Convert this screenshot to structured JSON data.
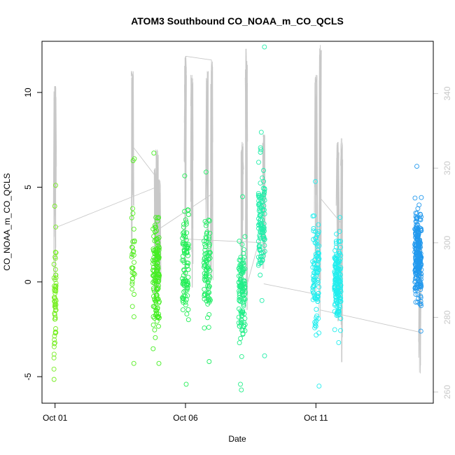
{
  "chart_data": {
    "type": "scatter",
    "title": "ATOM3 Southbound CO_NOAA_m_CO_QCLS",
    "xlabel": "Date",
    "ylabel": "CO_NOAA_m_CO_QCLS",
    "x_axis": {
      "type": "date",
      "range": [
        "2016-09-30T12:00",
        "2016-10-15T12:00"
      ],
      "ticks": [
        {
          "value": "2016-10-01",
          "label": "Oct 01"
        },
        {
          "value": "2016-10-06",
          "label": "Oct 06"
        },
        {
          "value": "2016-10-11",
          "label": "Oct 11"
        }
      ]
    },
    "y_axis": {
      "range": [
        -6.4,
        12.7
      ],
      "ticks": [
        -5,
        0,
        5,
        10
      ]
    },
    "y2_axis": {
      "range": [
        257,
        354
      ],
      "ticks": [
        260,
        280,
        300,
        320,
        340
      ],
      "color": "#c8c8c8"
    },
    "grid": false,
    "legend": "none",
    "series": [
      {
        "kind": "points",
        "axis": "left",
        "color": "#77ee22",
        "date": "2016-10-01T00:00",
        "spread_hours": 2,
        "mean": -1.0,
        "sd": 2.4,
        "n": 55,
        "outliers": [
          5.1,
          4.0,
          2.9,
          -4.6
        ]
      },
      {
        "kind": "points",
        "axis": "left",
        "color": "#55ee22",
        "date": "2016-10-04T00:00",
        "spread_hours": 3,
        "mean": 0.8,
        "sd": 2.6,
        "n": 30,
        "outliers": [
          6.5,
          6.4,
          -4.3
        ]
      },
      {
        "kind": "points",
        "axis": "left",
        "color": "#44ee22",
        "date": "2016-10-04T21:00",
        "spread_hours": 6,
        "mean": 0.4,
        "sd": 2.1,
        "n": 150,
        "outliers": [
          6.8,
          -4.3
        ]
      },
      {
        "kind": "points",
        "axis": "left",
        "color": "#22ee55",
        "date": "2016-10-06T00:00",
        "spread_hours": 6,
        "mean": 0.9,
        "sd": 2.2,
        "n": 90,
        "outliers": [
          5.6,
          -5.4
        ]
      },
      {
        "kind": "points",
        "axis": "left",
        "color": "#22ee66",
        "date": "2016-10-06T20:00",
        "spread_hours": 6,
        "mean": 0.6,
        "sd": 2.2,
        "n": 90,
        "outliers": [
          5.8,
          -4.2
        ]
      },
      {
        "kind": "points",
        "axis": "left",
        "color": "#22ee88",
        "date": "2016-10-08T04:00",
        "spread_hours": 6,
        "mean": -0.6,
        "sd": 1.9,
        "n": 120,
        "outliers": [
          4.5,
          -5.4,
          -5.7
        ]
      },
      {
        "kind": "points",
        "axis": "left",
        "color": "#22eeaa",
        "date": "2016-10-08T22:00",
        "spread_hours": 6,
        "mean": 3.2,
        "sd": 2.3,
        "n": 110,
        "outliers": [
          12.4,
          7.9,
          -3.9
        ]
      },
      {
        "kind": "points",
        "axis": "left",
        "color": "#22eeee",
        "date": "2016-10-11T00:00",
        "spread_hours": 6,
        "mean": 0.5,
        "sd": 2.2,
        "n": 100,
        "outliers": [
          5.3,
          -5.5
        ]
      },
      {
        "kind": "points",
        "axis": "left",
        "color": "#22eeee",
        "date": "2016-10-11T20:00",
        "spread_hours": 6,
        "mean": 0.2,
        "sd": 1.5,
        "n": 160,
        "outliers": [
          3.4,
          -3.2
        ]
      },
      {
        "kind": "points",
        "axis": "left",
        "color": "#2299ee",
        "date": "2016-10-14T22:00",
        "spread_hours": 6,
        "mean": 1.4,
        "sd": 1.8,
        "n": 230,
        "outliers": [
          6.1,
          -2.6
        ]
      }
    ],
    "profile_line": {
      "axis": "right",
      "color": "#c8c8c8",
      "spikes": [
        {
          "date": "2016-10-01T00:00",
          "top": 342,
          "bottom": 290
        },
        {
          "date": "2016-10-03T23:00",
          "top": 346,
          "bottom": 296
        },
        {
          "date": "2016-10-04T20:00",
          "top": 320,
          "bottom": 283
        },
        {
          "date": "2016-10-04T22:00",
          "top": 325,
          "bottom": 286
        },
        {
          "date": "2016-10-05T00:00",
          "top": 317,
          "bottom": 288
        },
        {
          "date": "2016-10-06T00:00",
          "top": 350,
          "bottom": 286
        },
        {
          "date": "2016-10-06T06:00",
          "top": 345,
          "bottom": 288
        },
        {
          "date": "2016-10-06T20:00",
          "top": 346,
          "bottom": 284
        },
        {
          "date": "2016-10-07T00:00",
          "top": 349,
          "bottom": 290
        },
        {
          "date": "2016-10-08T04:00",
          "top": 327,
          "bottom": 285
        },
        {
          "date": "2016-10-08T08:00",
          "top": 352,
          "bottom": 282
        },
        {
          "date": "2016-10-09T00:00",
          "top": 329,
          "bottom": 293
        },
        {
          "date": "2016-10-11T00:00",
          "top": 345,
          "bottom": 287
        },
        {
          "date": "2016-10-11T04:00",
          "top": 353,
          "bottom": 280
        },
        {
          "date": "2016-10-11T20:00",
          "top": 327,
          "bottom": 279
        },
        {
          "date": "2016-10-12T00:00",
          "top": 328,
          "bottom": 268
        },
        {
          "date": "2016-10-15T00:00",
          "top": 303,
          "bottom": 265
        }
      ],
      "connectors": [
        [
          "2016-10-01T00:00",
          304,
          "2016-10-04T22:00",
          315
        ],
        [
          "2016-10-03T23:00",
          326,
          "2016-10-04T20:00",
          318
        ],
        [
          "2016-10-04T20:00",
          303,
          "2016-10-07T00:00",
          313
        ],
        [
          "2016-10-06T00:00",
          350,
          "2016-10-07T00:00",
          349
        ],
        [
          "2016-10-06T00:00",
          301,
          "2016-10-09T00:00",
          300
        ],
        [
          "2016-10-08T06:00",
          286,
          "2016-10-09T00:00",
          305
        ],
        [
          "2016-10-09T00:00",
          289,
          "2016-10-11T04:00",
          286
        ],
        [
          "2016-10-11T04:00",
          312,
          "2016-10-12T00:00",
          305
        ],
        [
          "2016-10-11T04:00",
          282,
          "2016-10-15T00:00",
          276
        ]
      ]
    }
  }
}
